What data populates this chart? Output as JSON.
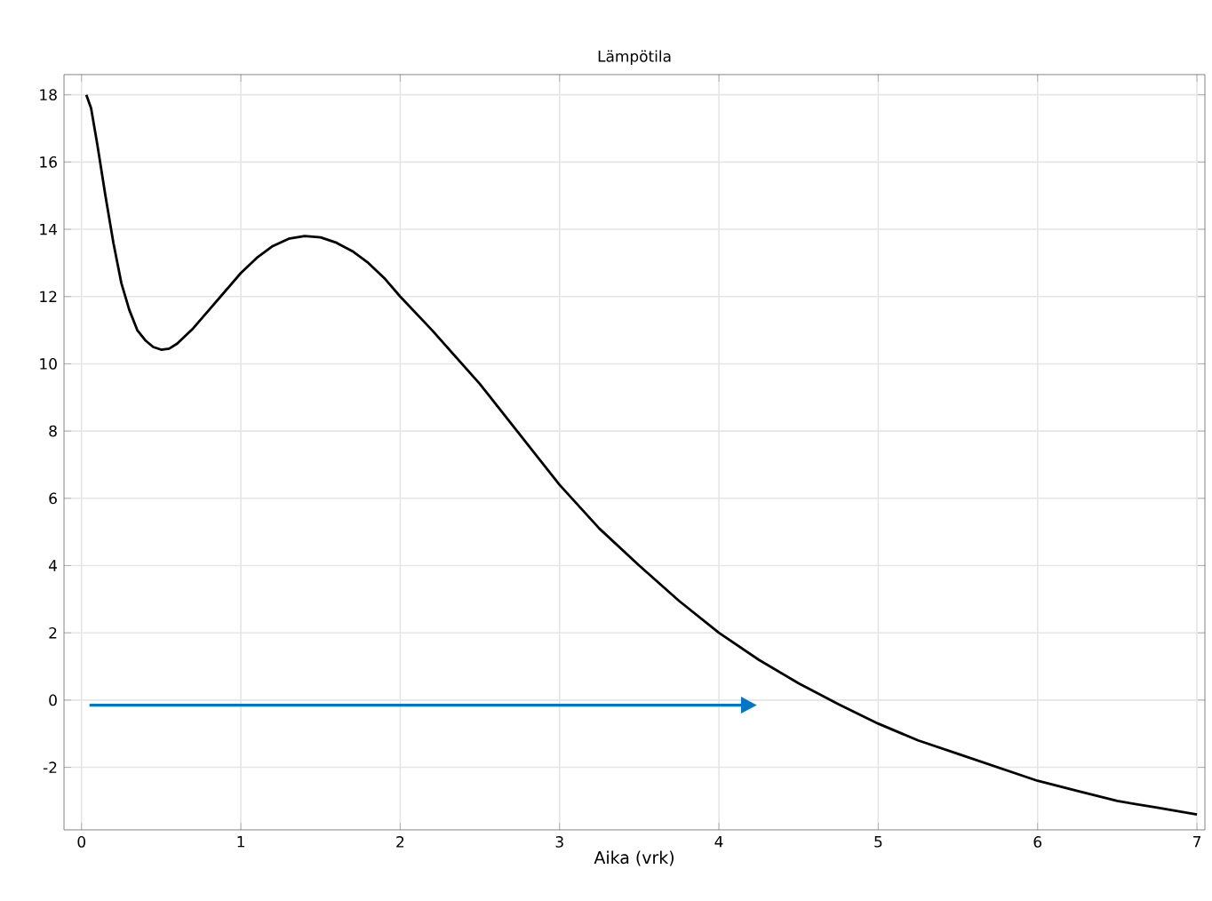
{
  "chart_data": {
    "type": "line",
    "title": "Lämpötila",
    "xlabel": "Aika (vrk)",
    "xlim": [
      -0.11,
      7.05
    ],
    "ylim": [
      -3.86,
      18.6
    ],
    "xticks": [
      0,
      1,
      2,
      3,
      4,
      5,
      6,
      7
    ],
    "yticks": [
      -2,
      0,
      2,
      4,
      6,
      8,
      10,
      12,
      14,
      16,
      18
    ],
    "grid": true,
    "series": [
      {
        "color": "#000000",
        "x": [
          0.03,
          0.06,
          0.1,
          0.15,
          0.2,
          0.25,
          0.3,
          0.35,
          0.4,
          0.45,
          0.5,
          0.55,
          0.6,
          0.7,
          0.8,
          0.9,
          1.0,
          1.1,
          1.2,
          1.3,
          1.4,
          1.5,
          1.6,
          1.7,
          1.8,
          1.9,
          2.0,
          2.2,
          2.5,
          2.75,
          3.0,
          3.25,
          3.5,
          3.75,
          4.0,
          4.25,
          4.5,
          4.75,
          5.0,
          5.25,
          5.5,
          5.75,
          6.0,
          6.25,
          6.5,
          6.75,
          7.0
        ],
        "values": [
          18,
          17.6,
          16.5,
          15.0,
          13.6,
          12.4,
          11.6,
          11.0,
          10.7,
          10.5,
          10.42,
          10.45,
          10.6,
          11.05,
          11.6,
          12.15,
          12.7,
          13.15,
          13.5,
          13.72,
          13.8,
          13.76,
          13.6,
          13.35,
          13.0,
          12.55,
          12.0,
          11.0,
          9.4,
          7.9,
          6.4,
          5.1,
          4.0,
          2.95,
          2.0,
          1.2,
          0.5,
          -0.12,
          -0.7,
          -1.2,
          -1.6,
          -2.0,
          -2.4,
          -2.7,
          -3.0,
          -3.2,
          -3.4
        ]
      },
      {
        "color": "#0077c8",
        "x": [
          0.05,
          4.15
        ],
        "values": [
          -0.15,
          -0.15
        ]
      }
    ]
  }
}
